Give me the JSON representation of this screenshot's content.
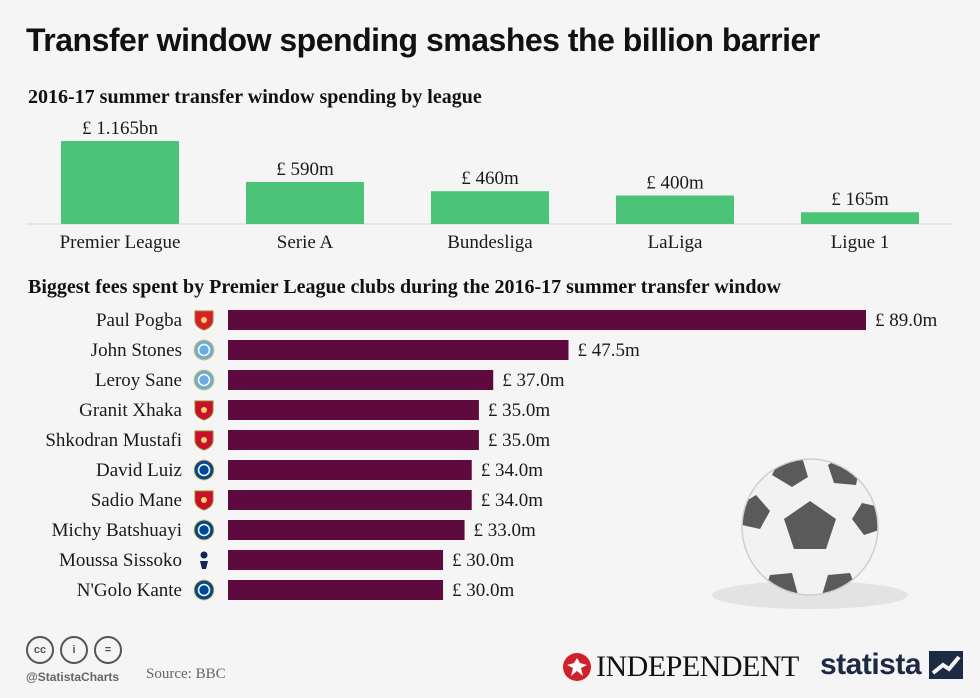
{
  "title": "Transfer window spending smashes the billion barrier",
  "colors": {
    "league_bar": "#4cc477",
    "player_bar": "#5f0a3f",
    "text": "#1a1a1a"
  },
  "chart_data": [
    {
      "type": "bar",
      "title": "2016-17 summer transfer window spending by league",
      "unit": "£ bn",
      "categories": [
        "Premier League",
        "Serie A",
        "Bundesliga",
        "LaLiga",
        "Ligue 1"
      ],
      "values": [
        1.165,
        0.59,
        0.46,
        0.4,
        0.165
      ],
      "labels": [
        "£ 1.165bn",
        "£ 590m",
        "£ 460m",
        "£ 400m",
        "£ 165m"
      ]
    },
    {
      "type": "bar",
      "orientation": "horizontal",
      "title": "Biggest fees spent by Premier League clubs during the 2016-17 summer transfer window",
      "unit": "£ m",
      "categories": [
        "Paul Pogba",
        "John Stones",
        "Leroy Sane",
        "Granit Xhaka",
        "Shkodran Mustafi",
        "David Luiz",
        "Sadio Mane",
        "Michy Batshuayi",
        "Moussa Sissoko",
        "N'Golo Kante"
      ],
      "clubs": [
        "manchester-united",
        "manchester-city",
        "manchester-city",
        "arsenal",
        "arsenal",
        "chelsea",
        "liverpool",
        "chelsea",
        "tottenham",
        "chelsea"
      ],
      "values": [
        89.0,
        47.5,
        37.0,
        35.0,
        35.0,
        34.0,
        34.0,
        33.0,
        30.0,
        30.0
      ],
      "labels": [
        "£ 89.0m",
        "£ 47.5m",
        "£ 37.0m",
        "£ 35.0m",
        "£ 35.0m",
        "£ 34.0m",
        "£ 34.0m",
        "£ 33.0m",
        "£ 30.0m",
        "£ 30.0m"
      ]
    }
  ],
  "club_colors": {
    "manchester-united": "#d8202a",
    "manchester-city": "#6cabdd",
    "arsenal": "#c8102e",
    "chelsea": "#034694",
    "liverpool": "#c8102e",
    "tottenham": "#132257"
  },
  "footer": {
    "cc_icons": [
      "cc",
      "i",
      "="
    ],
    "handle": "@StatistaCharts",
    "source": "Source: BBC",
    "independent": "INDEPENDENT",
    "statista": "statista"
  }
}
